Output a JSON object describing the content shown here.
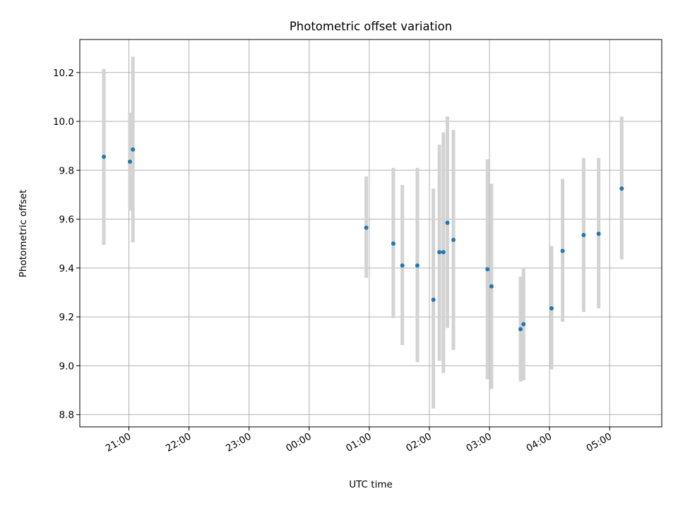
{
  "chart_data": {
    "type": "scatter",
    "title": "Photometric offset variation",
    "xlabel": "UTC time",
    "ylabel": "Photometric offset",
    "x_axis_kind": "time",
    "x_tick_labels": [
      "21:00",
      "22:00",
      "23:00",
      "00:00",
      "01:00",
      "02:00",
      "03:00",
      "04:00",
      "05:00"
    ],
    "y_ticks": [
      8.8,
      9.0,
      9.2,
      9.4,
      9.6,
      9.8,
      10.0,
      10.2
    ],
    "y_tick_labels": [
      "8.8",
      "9.0",
      "9.2",
      "9.4",
      "9.6",
      "9.8",
      "10.0",
      "10.2"
    ],
    "x_range": [
      "20:11",
      "05:52"
    ],
    "y_range": [
      8.75,
      10.335
    ],
    "grid": true,
    "error_bar_color": "#d3d3d3",
    "point_color": "#1f77b4",
    "points": [
      {
        "t": "20:35",
        "y": 9.855,
        "ylo": 9.495,
        "yhi": 10.215
      },
      {
        "t": "21:01",
        "y": 9.835,
        "ylo": 9.635,
        "yhi": 10.035
      },
      {
        "t": "21:04",
        "y": 9.885,
        "ylo": 9.505,
        "yhi": 10.265
      },
      {
        "t": "00:57",
        "y": 9.565,
        "ylo": 9.36,
        "yhi": 9.775
      },
      {
        "t": "01:24",
        "y": 9.5,
        "ylo": 9.195,
        "yhi": 9.81
      },
      {
        "t": "01:33",
        "y": 9.41,
        "ylo": 9.085,
        "yhi": 9.74
      },
      {
        "t": "01:48",
        "y": 9.41,
        "ylo": 9.015,
        "yhi": 9.81
      },
      {
        "t": "02:04",
        "y": 9.27,
        "ylo": 8.825,
        "yhi": 9.725
      },
      {
        "t": "02:10",
        "y": 9.465,
        "ylo": 9.02,
        "yhi": 9.905
      },
      {
        "t": "02:14",
        "y": 9.465,
        "ylo": 8.97,
        "yhi": 9.955
      },
      {
        "t": "02:18",
        "y": 9.585,
        "ylo": 9.155,
        "yhi": 10.02
      },
      {
        "t": "02:24",
        "y": 9.515,
        "ylo": 9.065,
        "yhi": 9.965
      },
      {
        "t": "02:58",
        "y": 9.395,
        "ylo": 8.945,
        "yhi": 9.845
      },
      {
        "t": "03:02",
        "y": 9.325,
        "ylo": 8.905,
        "yhi": 9.745
      },
      {
        "t": "03:31",
        "y": 9.15,
        "ylo": 8.935,
        "yhi": 9.365
      },
      {
        "t": "03:34",
        "y": 9.17,
        "ylo": 8.94,
        "yhi": 9.4
      },
      {
        "t": "04:02",
        "y": 9.235,
        "ylo": 8.985,
        "yhi": 9.49
      },
      {
        "t": "04:13",
        "y": 9.47,
        "ylo": 9.18,
        "yhi": 9.765
      },
      {
        "t": "04:34",
        "y": 9.535,
        "ylo": 9.22,
        "yhi": 9.85
      },
      {
        "t": "04:49",
        "y": 9.54,
        "ylo": 9.235,
        "yhi": 9.85
      },
      {
        "t": "05:12",
        "y": 9.725,
        "ylo": 9.435,
        "yhi": 10.02
      }
    ]
  }
}
